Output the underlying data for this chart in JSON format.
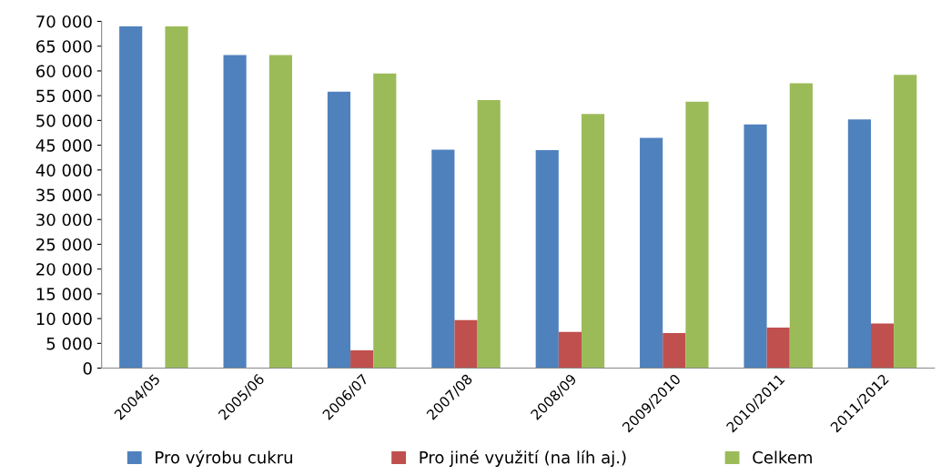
{
  "chart_data": {
    "type": "bar",
    "categories": [
      "2004/05",
      "2005/06",
      "2006/07",
      "2007/08",
      "2008/09",
      "2009/2010",
      "2010/2011",
      "2011/2012"
    ],
    "series": [
      {
        "name": "Pro výrobu cukru",
        "color": "#4f81bd",
        "values": [
          69000,
          63200,
          55800,
          44100,
          44000,
          46500,
          49200,
          50200
        ]
      },
      {
        "name": "Pro jiné využití (na líh aj.)",
        "color": "#c0504d",
        "values": [
          null,
          null,
          3600,
          9700,
          7300,
          7100,
          8200,
          9000
        ]
      },
      {
        "name": "Celkem",
        "color": "#9bbb59",
        "values": [
          69000,
          63200,
          59500,
          54100,
          51300,
          53800,
          57500,
          59200
        ]
      }
    ],
    "ylim": [
      0,
      70000
    ],
    "yticks": [
      {
        "value": 0,
        "label": "0"
      },
      {
        "value": 5000,
        "label": "5 000"
      },
      {
        "value": 10000,
        "label": "10 000"
      },
      {
        "value": 15000,
        "label": "15 000"
      },
      {
        "value": 20000,
        "label": "20 000"
      },
      {
        "value": 25000,
        "label": "25 000"
      },
      {
        "value": 30000,
        "label": "30 000"
      },
      {
        "value": 35000,
        "label": "35 000"
      },
      {
        "value": 40000,
        "label": "40 000"
      },
      {
        "value": 45000,
        "label": "45 000"
      },
      {
        "value": 50000,
        "label": "50 000"
      },
      {
        "value": 55000,
        "label": "55 000"
      },
      {
        "value": 60000,
        "label": "60 000"
      },
      {
        "value": 65000,
        "label": "65 000"
      },
      {
        "value": 70000,
        "label": "70 000"
      }
    ],
    "grid": false,
    "legend": "bottom"
  }
}
